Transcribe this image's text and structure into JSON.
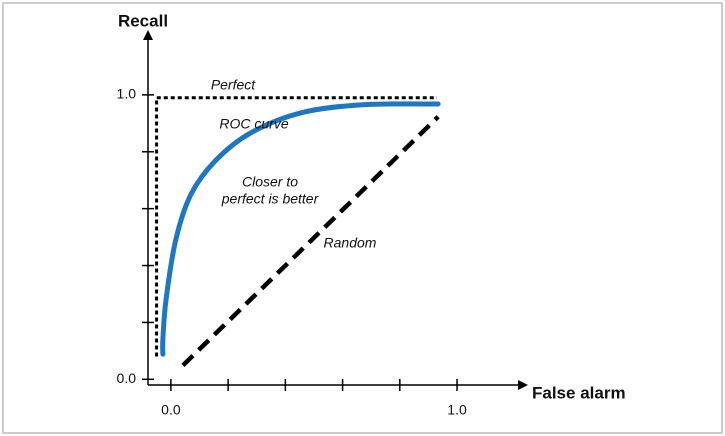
{
  "chart_data": {
    "type": "line",
    "x_label": "False alarm",
    "y_label": "Recall",
    "xlim": [
      -0.08,
      1.22
    ],
    "ylim": [
      -0.02,
      1.2
    ],
    "xticks": [
      {
        "value": 0,
        "label": "0.0"
      },
      {
        "value": 1,
        "label": "1.0"
      }
    ],
    "yticks": [
      {
        "value": 0,
        "label": "0.0"
      },
      {
        "value": 1,
        "label": "1.0"
      }
    ],
    "xminorticks": [
      0.2,
      0.4,
      0.6,
      0.8
    ],
    "yminorticks": [
      0.2,
      0.4,
      0.6,
      0.8
    ],
    "series": [
      {
        "name": "Perfect",
        "color": "#000000",
        "style": "dotted",
        "x": [
          -0.05,
          -0.05,
          0.93
        ],
        "values": [
          0.08,
          0.99,
          0.99
        ]
      },
      {
        "name": "ROC curve",
        "color": "#1f77c4",
        "style": "solid",
        "x": [
          -0.028,
          -0.028,
          -0.017,
          0.017,
          0.07,
          0.157,
          0.28,
          0.455,
          0.664,
          0.934
        ],
        "values": [
          0.088,
          0.14,
          0.28,
          0.49,
          0.65,
          0.77,
          0.867,
          0.937,
          0.965,
          0.968
        ]
      },
      {
        "name": "Random",
        "color": "#000000",
        "style": "dashed",
        "x": [
          0.042,
          0.934
        ],
        "values": [
          0.049,
          0.923
        ]
      }
    ],
    "annotations": [
      "Closer to",
      "perfect is better"
    ]
  }
}
